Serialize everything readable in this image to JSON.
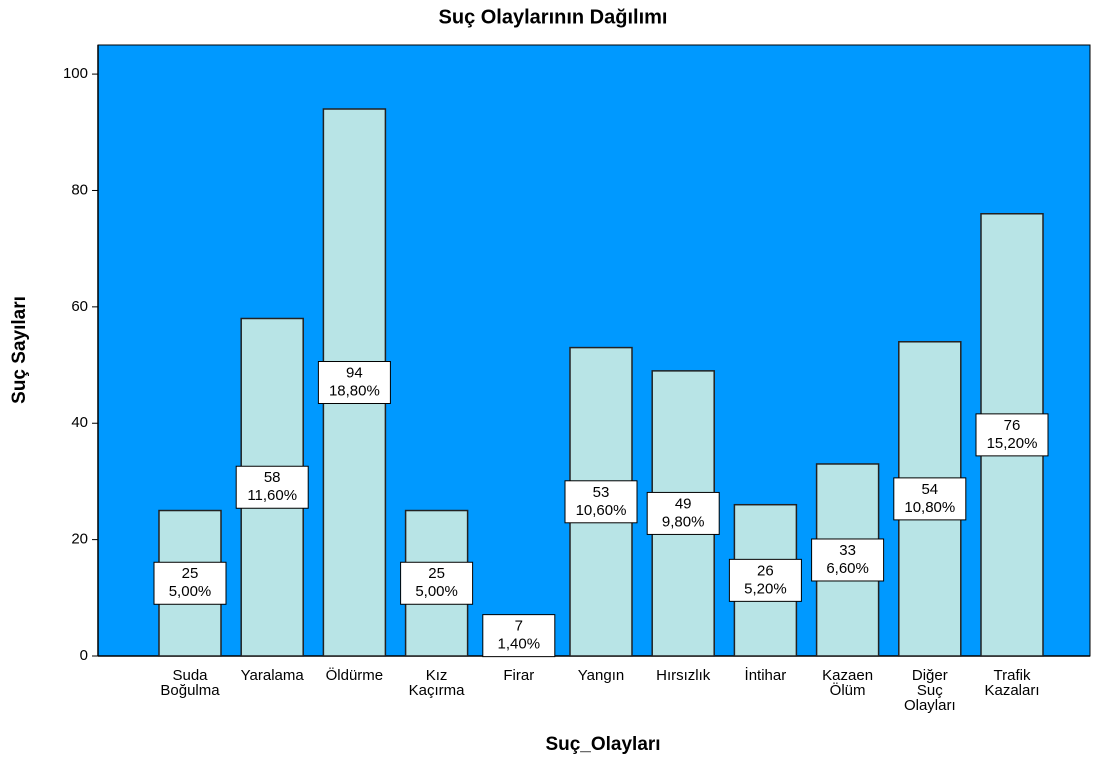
{
  "chart_data": {
    "type": "bar",
    "title": "Suç Olaylarının Dağılımı",
    "x_label": "Suç_Olayları",
    "y_label": "Suç Sayıları",
    "categories": [
      "Suda Boğulma",
      "Yaralama",
      "Öldürme",
      "Kız Kaçırma",
      "Firar",
      "Yangın",
      "Hırsızlık",
      "İntihar",
      "Kazaen Ölüm",
      "Diğer Suç Olayları",
      "Trafik Kazaları"
    ],
    "values": [
      25,
      58,
      94,
      25,
      7,
      53,
      49,
      26,
      33,
      54,
      76
    ],
    "percentages": [
      5.0,
      11.6,
      18.8,
      5.0,
      1.4,
      10.6,
      9.8,
      5.2,
      6.6,
      10.8,
      15.2
    ],
    "percentage_labels": [
      "5,00%",
      "11,60%",
      "18,80%",
      "5,00%",
      "1,40%",
      "10,60%",
      "9,80%",
      "5,20%",
      "6,60%",
      "10,80%",
      "15,20%"
    ],
    "color": "#b8e4e6",
    "background": "#0099ff",
    "ylim": [
      0,
      105
    ],
    "yticks": [
      0,
      20,
      40,
      60,
      80,
      100
    ]
  }
}
